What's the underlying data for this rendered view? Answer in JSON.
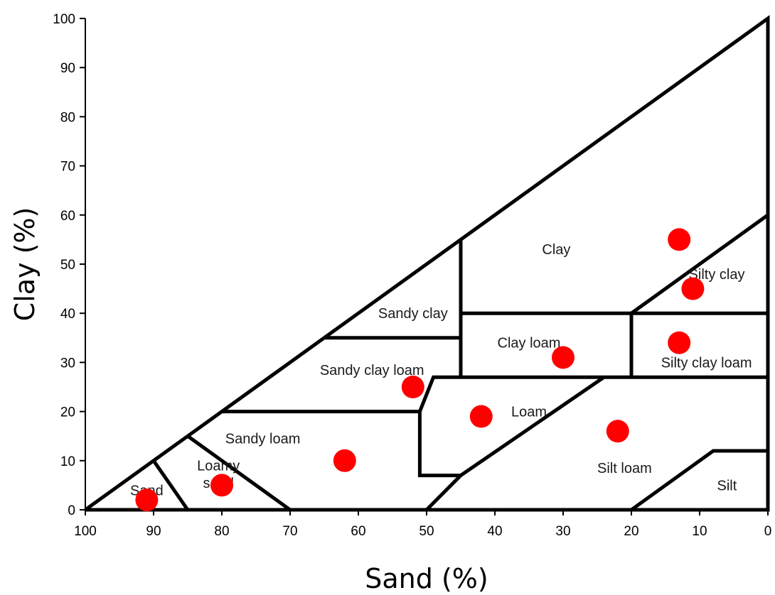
{
  "chart_data": {
    "type": "scatter",
    "xlabel": "Sand (%)",
    "ylabel": "Clay (%)",
    "xlim": [
      100,
      0
    ],
    "ylim": [
      0,
      100
    ],
    "x_reversed": true,
    "x_ticks": [
      100,
      90,
      80,
      70,
      60,
      50,
      40,
      30,
      20,
      10,
      0
    ],
    "y_ticks": [
      0,
      10,
      20,
      30,
      40,
      50,
      60,
      70,
      80,
      90,
      100
    ],
    "point_color": "#ff0000",
    "grid": false,
    "points": [
      {
        "x": 91,
        "y": 2
      },
      {
        "x": 80,
        "y": 5
      },
      {
        "x": 62,
        "y": 10
      },
      {
        "x": 52,
        "y": 25
      },
      {
        "x": 42,
        "y": 19
      },
      {
        "x": 30,
        "y": 31
      },
      {
        "x": 22,
        "y": 16
      },
      {
        "x": 13,
        "y": 55
      },
      {
        "x": 11,
        "y": 45
      },
      {
        "x": 13,
        "y": 34
      }
    ],
    "region_labels": [
      {
        "text": "Clay",
        "x": 31,
        "y": 53
      },
      {
        "text": "Silty clay",
        "x": 7.5,
        "y": 48
      },
      {
        "text": "Sandy clay",
        "x": 52,
        "y": 40
      },
      {
        "text": "Clay loam",
        "x": 35,
        "y": 34
      },
      {
        "text": "Silty clay loam",
        "x": 9,
        "y": 30
      },
      {
        "text": "Sandy clay loam",
        "x": 58,
        "y": 28.5
      },
      {
        "text": "Loam",
        "x": 35,
        "y": 20
      },
      {
        "text": "Sandy loam",
        "x": 74,
        "y": 14.5
      },
      {
        "text": "Loamy",
        "x": 80.5,
        "y": 9
      },
      {
        "text": "sand",
        "x": 80.5,
        "y": 5.5
      },
      {
        "text": "Sand",
        "x": 91,
        "y": 4
      },
      {
        "text": "Silt loam",
        "x": 21,
        "y": 8.5
      },
      {
        "text": "Silt",
        "x": 6,
        "y": 5
      }
    ],
    "boundaries": [
      [
        [
          100,
          0
        ],
        [
          0,
          100
        ],
        [
          0,
          0
        ],
        [
          100,
          0
        ]
      ],
      [
        [
          90,
          10
        ],
        [
          85,
          0
        ]
      ],
      [
        [
          85,
          15
        ],
        [
          70,
          0
        ]
      ],
      [
        [
          80,
          20
        ],
        [
          51,
          20
        ],
        [
          49,
          27
        ],
        [
          20,
          27
        ],
        [
          0,
          27
        ]
      ],
      [
        [
          51,
          20
        ],
        [
          51,
          7
        ],
        [
          45,
          7
        ],
        [
          50,
          0
        ]
      ],
      [
        [
          45,
          7
        ],
        [
          24,
          27
        ]
      ],
      [
        [
          65,
          35
        ],
        [
          45,
          35
        ]
      ],
      [
        [
          45,
          55
        ],
        [
          45,
          27
        ]
      ],
      [
        [
          45,
          40
        ],
        [
          0,
          40
        ]
      ],
      [
        [
          20,
          40
        ],
        [
          0,
          60
        ]
      ],
      [
        [
          20,
          40
        ],
        [
          20,
          27
        ]
      ],
      [
        [
          20,
          0
        ],
        [
          8,
          12
        ],
        [
          0,
          12
        ]
      ]
    ]
  }
}
